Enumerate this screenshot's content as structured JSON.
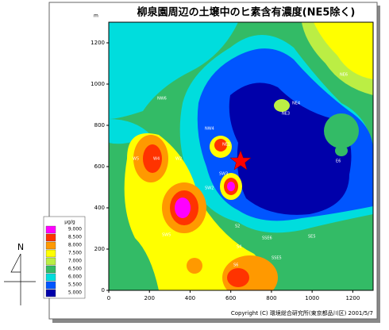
{
  "header": {
    "title": "柳泉園周辺の土壌中のヒ素含有濃度(NE5除く)",
    "unit": "m"
  },
  "map": {
    "xlim": [
      0,
      1300
    ],
    "ylim": [
      0,
      1300
    ],
    "xticks": [
      0,
      200,
      400,
      600,
      800,
      1000,
      1200
    ],
    "yticks": [
      0,
      200,
      400,
      600,
      800,
      1000,
      1200
    ],
    "stations": [
      "NE6",
      "NE4",
      "NE3",
      "NW6",
      "NW4",
      "NE1",
      "W5",
      "W4",
      "W2",
      "SW3",
      "SW2",
      "E6",
      "S2",
      "SW5",
      "S4",
      "SSE6",
      "SE5",
      "SSE5",
      "S6"
    ]
  },
  "legend": {
    "unit": "μg/g",
    "items": [
      {
        "value": 9,
        "label": "9.000",
        "color": "#ff00ff"
      },
      {
        "value": 8.5,
        "label": "8.500",
        "color": "#ff3300"
      },
      {
        "value": 8,
        "label": "8.000",
        "color": "#ff9900"
      },
      {
        "value": 7.5,
        "label": "7.500",
        "color": "#ffff00"
      },
      {
        "value": 7,
        "label": "7.000",
        "color": "#bbee44"
      },
      {
        "value": 6.5,
        "label": "6.500",
        "color": "#33bb66"
      },
      {
        "value": 6,
        "label": "6.000",
        "color": "#00dddd"
      },
      {
        "value": 5.5,
        "label": "5.500",
        "color": "#0055ff"
      },
      {
        "value": 5,
        "label": "5.000",
        "color": "#0000aa"
      }
    ]
  },
  "footer": {
    "copyright": "Copyright (C) 環境総合研究所(東京都品川区) 2001/5/7",
    "compass": "N"
  }
}
